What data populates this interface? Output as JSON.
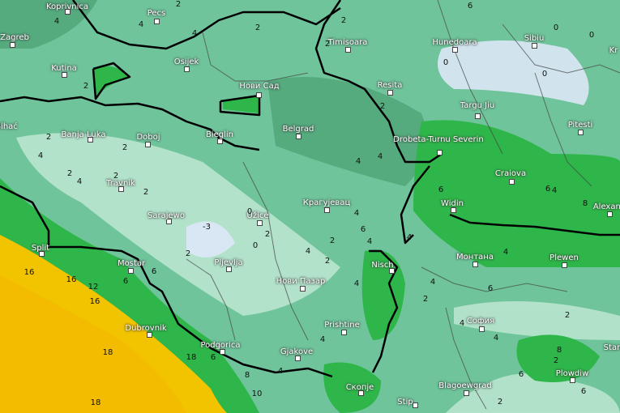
{
  "map": {
    "variable_colors": {
      "sea_warm": "#f2c400",
      "bright_green": "#2fb64a",
      "mid_green": "#5fb886",
      "pale": "#cdeee0",
      "cold": "#dde8f8",
      "border": "#000000"
    },
    "cities": [
      "Koprivnica",
      "Pecs",
      "Zagreb",
      "Kutina",
      "Osijek",
      "Нови Сад",
      "Belgrad",
      "Bieglin",
      "Banja Luka",
      "Doboj",
      "Travnik",
      "Sarajewo",
      "Užice",
      "Pljevlja",
      "Нови Пазар",
      "Mostar",
      "Split",
      "Dubrovnik",
      "Podgorica",
      "Gjakove",
      "Prishtine",
      "Nisch",
      "Скопје",
      "Stip",
      "Blagoewgrad",
      "София",
      "Монтана",
      "Plewen",
      "Widin",
      "Alexand",
      "Craiova",
      "Drobeta-Turnu Severin",
      "Targu Jiu",
      "Pitesti",
      "Sibiu",
      "Hunedoara",
      "Timisoara",
      "Resita",
      "Крагујевац",
      "Plowdiw",
      "Stara",
      "Kr",
      "Bihać"
    ],
    "contour_labels": [
      "2",
      "4",
      "2",
      "4",
      "4",
      "2",
      "2",
      "2",
      "4",
      "2",
      "2",
      "4",
      "2",
      "0",
      "-3",
      "0",
      "2",
      "2",
      "4",
      "6",
      "6",
      "16",
      "16",
      "18",
      "18",
      "12",
      "16",
      "18",
      "6",
      "8",
      "10",
      "4",
      "4",
      "6",
      "4",
      "4",
      "2",
      "4",
      "2",
      "4",
      "6",
      "4",
      "8",
      "6",
      "2",
      "4",
      "6",
      "6",
      "6",
      "0",
      "0",
      "0",
      "0",
      "2",
      "2",
      "2",
      "4",
      "4",
      "2",
      "2",
      "4",
      "6",
      "8",
      "4",
      "4",
      "2"
    ]
  }
}
